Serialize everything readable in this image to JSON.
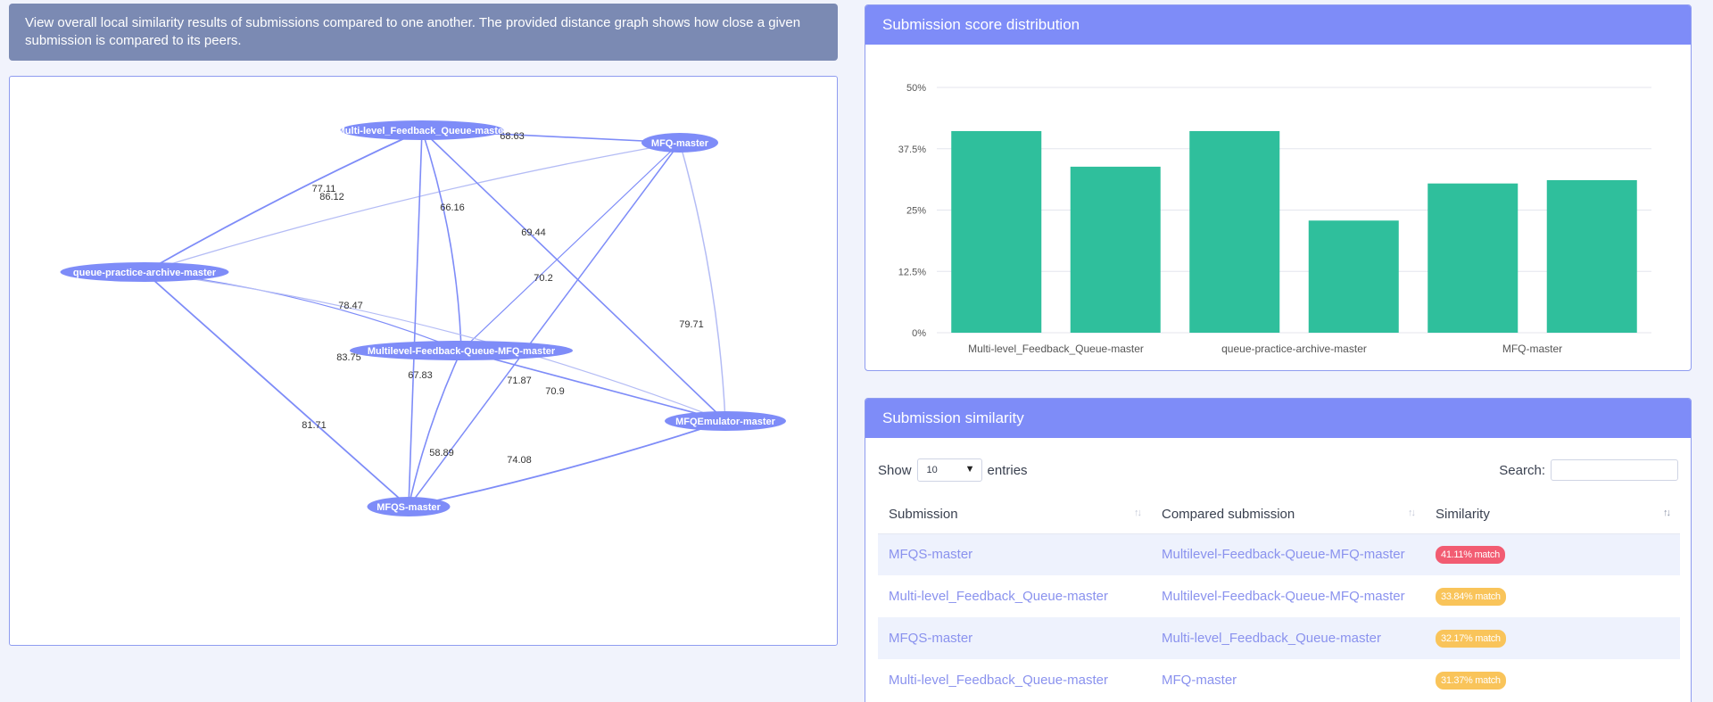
{
  "info_banner": "View overall local similarity results of submissions compared to one another. The provided distance graph shows how close a given submission is compared to its peers.",
  "graph": {
    "nodes": [
      {
        "id": "mlfq",
        "label": "Multi-level_Feedback_Queue-master"
      },
      {
        "id": "mfq",
        "label": "MFQ-master"
      },
      {
        "id": "qpa",
        "label": "queue-practice-archive-master"
      },
      {
        "id": "mlfqmfq",
        "label": "Multilevel-Feedback-Queue-MFQ-master"
      },
      {
        "id": "mfqe",
        "label": "MFQEmulator-master"
      },
      {
        "id": "mfqs",
        "label": "MFQS-master"
      }
    ],
    "edges": [
      {
        "from": "mlfq",
        "to": "mfq",
        "label": "68.63"
      },
      {
        "from": "mlfq",
        "to": "qpa",
        "label": "77.11"
      },
      {
        "from": "mfq",
        "to": "qpa",
        "label": "86.12"
      },
      {
        "from": "mlfq",
        "to": "mlfqmfq",
        "label": "66.16"
      },
      {
        "from": "mlfq",
        "to": "mfqe",
        "label": "69.44"
      },
      {
        "from": "mfq",
        "to": "mlfqmfq",
        "label": "70.2"
      },
      {
        "from": "qpa",
        "to": "mlfqmfq",
        "label": "78.47"
      },
      {
        "from": "mfq",
        "to": "mfqe",
        "label": "79.71"
      },
      {
        "from": "qpa",
        "to": "mfqe",
        "label": "83.75"
      },
      {
        "from": "mlfq",
        "to": "mfqs",
        "label": "67.83"
      },
      {
        "from": "mfq",
        "to": "mfqs",
        "label": "71.87"
      },
      {
        "from": "mlfqmfq",
        "to": "mfqe",
        "label": "70.9"
      },
      {
        "from": "qpa",
        "to": "mfqs",
        "label": "81.71"
      },
      {
        "from": "mlfqmfq",
        "to": "mfqs",
        "label": "58.89"
      },
      {
        "from": "mfqe",
        "to": "mfqs",
        "label": "74.08"
      }
    ],
    "colors": {
      "node": "#7e8cf8",
      "edge": "#7e8cf8",
      "edge_light": "#b4bcf5"
    }
  },
  "chart_card": {
    "title": "Submission score distribution"
  },
  "chart_data": {
    "type": "bar",
    "categories": [
      "Multi-level_Feedback_Queue-master",
      "",
      "queue-practice-archive-master",
      "",
      "MFQ-master",
      ""
    ],
    "tick_labels": [
      "Multi-level_Feedback_Queue-master",
      "queue-practice-archive-master",
      "MFQ-master"
    ],
    "values": [
      41.1,
      33.84,
      41.1,
      22.86,
      30.42,
      31.1
    ],
    "title": "",
    "xlabel": "",
    "ylabel": "",
    "ylim": [
      0,
      50
    ],
    "yticks": [
      "0%",
      "12.5%",
      "25%",
      "37.5%",
      "50%"
    ],
    "grid": true,
    "bar_color": "#2fbf9c"
  },
  "table_card": {
    "title": "Submission similarity",
    "show_label": "Show",
    "entries_value": "10",
    "entries_label": "entries",
    "search_label": "Search:",
    "search_value": "",
    "columns": [
      "Submission",
      "Compared submission",
      "Similarity"
    ],
    "rows": [
      {
        "submission": "MFQS-master",
        "compared": "Multilevel-Feedback-Queue-MFQ-master",
        "similarity": "41.11% match",
        "color": "#f25c72"
      },
      {
        "submission": "Multi-level_Feedback_Queue-master",
        "compared": "Multilevel-Feedback-Queue-MFQ-master",
        "similarity": "33.84% match",
        "color": "#f9c45a"
      },
      {
        "submission": "MFQS-master",
        "compared": "Multi-level_Feedback_Queue-master",
        "similarity": "32.17% match",
        "color": "#f9c45a"
      },
      {
        "submission": "Multi-level_Feedback_Queue-master",
        "compared": "MFQ-master",
        "similarity": "31.37% match",
        "color": "#f9c45a"
      }
    ]
  }
}
